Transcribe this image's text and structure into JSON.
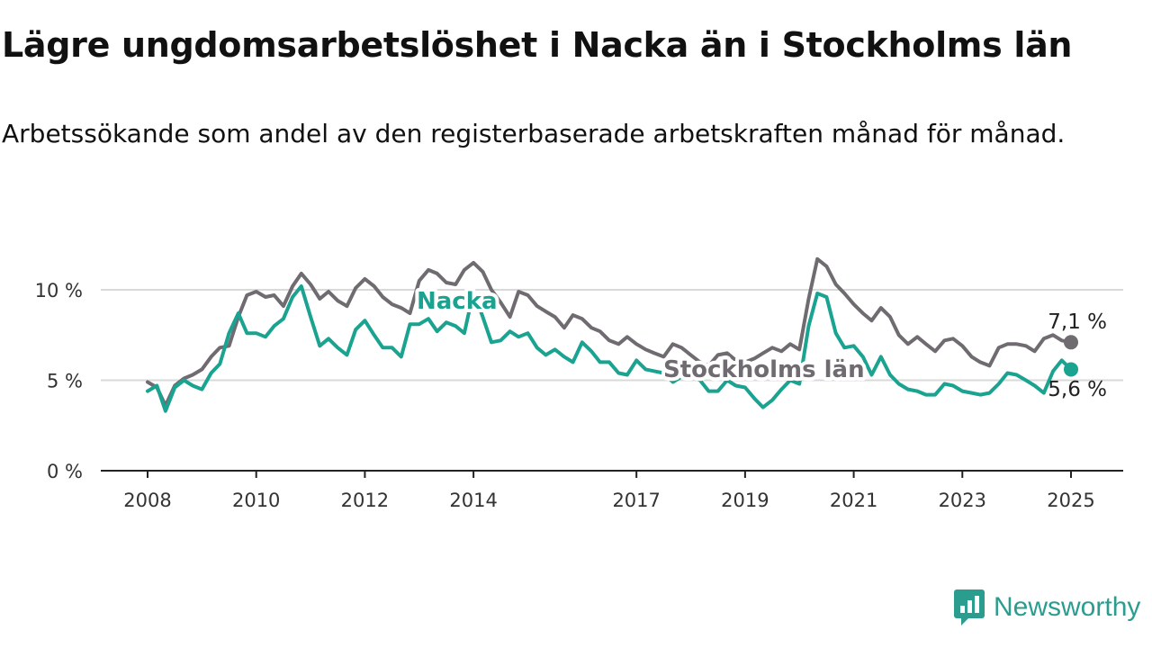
{
  "title": "Lägre ungdomsarbetslöshet i Nacka än i Stockholms län",
  "subtitle": "Arbetssökande som andel av den registerbaserade arbetskraften månad för månad.",
  "brand": {
    "name": "Newsworthy",
    "icon": "newsworthy-logo-icon",
    "color": "#2a9d8f"
  },
  "chart_data": {
    "type": "line",
    "title": "Lägre ungdomsarbetslöshet i Nacka än i Stockholms län",
    "subtitle": "Arbetssökande som andel av den registerbaserade arbetskraften månad för månad.",
    "xlabel": "",
    "ylabel": "",
    "x_range": [
      2008.0,
      2025.0
    ],
    "ylim": [
      0,
      12
    ],
    "x_ticks": [
      2008,
      2010,
      2012,
      2014,
      2017,
      2019,
      2021,
      2023,
      2025
    ],
    "x_tick_labels": [
      "2008",
      "2010",
      "2012",
      "2014",
      "2017",
      "2019",
      "2021",
      "2023",
      "2025"
    ],
    "y_ticks": [
      0,
      5,
      10
    ],
    "y_tick_labels": [
      "0 %",
      "5 %",
      "10 %"
    ],
    "grid": true,
    "legend": "inline labels",
    "series": [
      {
        "name": "Stockholms län",
        "color": "#6f6b70",
        "end_label": "7,1 %",
        "points": [
          [
            2008.0,
            4.9
          ],
          [
            2008.17,
            4.6
          ],
          [
            2008.33,
            3.6
          ],
          [
            2008.5,
            4.7
          ],
          [
            2008.67,
            5.1
          ],
          [
            2008.83,
            5.3
          ],
          [
            2009.0,
            5.6
          ],
          [
            2009.17,
            6.3
          ],
          [
            2009.33,
            6.8
          ],
          [
            2009.5,
            6.9
          ],
          [
            2009.67,
            8.5
          ],
          [
            2009.83,
            9.7
          ],
          [
            2010.0,
            9.9
          ],
          [
            2010.17,
            9.6
          ],
          [
            2010.33,
            9.7
          ],
          [
            2010.5,
            9.1
          ],
          [
            2010.67,
            10.2
          ],
          [
            2010.83,
            10.9
          ],
          [
            2011.0,
            10.3
          ],
          [
            2011.17,
            9.5
          ],
          [
            2011.33,
            9.9
          ],
          [
            2011.5,
            9.4
          ],
          [
            2011.67,
            9.1
          ],
          [
            2011.83,
            10.1
          ],
          [
            2012.0,
            10.6
          ],
          [
            2012.17,
            10.2
          ],
          [
            2012.33,
            9.6
          ],
          [
            2012.5,
            9.2
          ],
          [
            2012.67,
            9.0
          ],
          [
            2012.83,
            8.7
          ],
          [
            2013.0,
            10.5
          ],
          [
            2013.17,
            11.1
          ],
          [
            2013.33,
            10.9
          ],
          [
            2013.5,
            10.4
          ],
          [
            2013.67,
            10.3
          ],
          [
            2013.83,
            11.1
          ],
          [
            2014.0,
            11.5
          ],
          [
            2014.17,
            11.0
          ],
          [
            2014.33,
            10.0
          ],
          [
            2014.5,
            9.3
          ],
          [
            2014.67,
            8.5
          ],
          [
            2014.83,
            9.9
          ],
          [
            2015.0,
            9.7
          ],
          [
            2015.17,
            9.1
          ],
          [
            2015.33,
            8.8
          ],
          [
            2015.5,
            8.5
          ],
          [
            2015.67,
            7.9
          ],
          [
            2015.83,
            8.6
          ],
          [
            2016.0,
            8.4
          ],
          [
            2016.17,
            7.9
          ],
          [
            2016.33,
            7.7
          ],
          [
            2016.5,
            7.2
          ],
          [
            2016.67,
            7.0
          ],
          [
            2016.83,
            7.4
          ],
          [
            2017.0,
            7.0
          ],
          [
            2017.17,
            6.7
          ],
          [
            2017.33,
            6.5
          ],
          [
            2017.5,
            6.3
          ],
          [
            2017.67,
            7.0
          ],
          [
            2017.83,
            6.8
          ],
          [
            2018.0,
            6.4
          ],
          [
            2018.17,
            6.0
          ],
          [
            2018.33,
            5.8
          ],
          [
            2018.5,
            6.4
          ],
          [
            2018.67,
            6.5
          ],
          [
            2018.83,
            6.1
          ],
          [
            2019.0,
            6.0
          ],
          [
            2019.17,
            6.2
          ],
          [
            2019.33,
            6.5
          ],
          [
            2019.5,
            6.8
          ],
          [
            2019.67,
            6.6
          ],
          [
            2019.83,
            7.0
          ],
          [
            2020.0,
            6.7
          ],
          [
            2020.17,
            9.5
          ],
          [
            2020.33,
            11.7
          ],
          [
            2020.5,
            11.3
          ],
          [
            2020.67,
            10.3
          ],
          [
            2020.83,
            9.8
          ],
          [
            2021.0,
            9.2
          ],
          [
            2021.17,
            8.7
          ],
          [
            2021.33,
            8.3
          ],
          [
            2021.5,
            9.0
          ],
          [
            2021.67,
            8.5
          ],
          [
            2021.83,
            7.5
          ],
          [
            2022.0,
            7.0
          ],
          [
            2022.17,
            7.4
          ],
          [
            2022.33,
            7.0
          ],
          [
            2022.5,
            6.6
          ],
          [
            2022.67,
            7.2
          ],
          [
            2022.83,
            7.3
          ],
          [
            2023.0,
            6.9
          ],
          [
            2023.17,
            6.3
          ],
          [
            2023.33,
            6.0
          ],
          [
            2023.5,
            5.8
          ],
          [
            2023.67,
            6.8
          ],
          [
            2023.83,
            7.0
          ],
          [
            2024.0,
            7.0
          ],
          [
            2024.17,
            6.9
          ],
          [
            2024.33,
            6.6
          ],
          [
            2024.5,
            7.3
          ],
          [
            2024.67,
            7.5
          ],
          [
            2024.83,
            7.2
          ],
          [
            2025.0,
            7.1
          ]
        ]
      },
      {
        "name": "Nacka",
        "color": "#1aa391",
        "end_label": "5,6 %",
        "points": [
          [
            2008.0,
            4.4
          ],
          [
            2008.17,
            4.7
          ],
          [
            2008.33,
            3.3
          ],
          [
            2008.5,
            4.6
          ],
          [
            2008.67,
            5.0
          ],
          [
            2008.83,
            4.7
          ],
          [
            2009.0,
            4.5
          ],
          [
            2009.17,
            5.4
          ],
          [
            2009.33,
            5.9
          ],
          [
            2009.5,
            7.6
          ],
          [
            2009.67,
            8.7
          ],
          [
            2009.83,
            7.6
          ],
          [
            2010.0,
            7.6
          ],
          [
            2010.17,
            7.4
          ],
          [
            2010.33,
            8.0
          ],
          [
            2010.5,
            8.4
          ],
          [
            2010.67,
            9.6
          ],
          [
            2010.83,
            10.2
          ],
          [
            2011.0,
            8.5
          ],
          [
            2011.17,
            6.9
          ],
          [
            2011.33,
            7.3
          ],
          [
            2011.5,
            6.8
          ],
          [
            2011.67,
            6.4
          ],
          [
            2011.83,
            7.8
          ],
          [
            2012.0,
            8.3
          ],
          [
            2012.17,
            7.5
          ],
          [
            2012.33,
            6.8
          ],
          [
            2012.5,
            6.8
          ],
          [
            2012.67,
            6.3
          ],
          [
            2012.83,
            8.1
          ],
          [
            2013.0,
            8.1
          ],
          [
            2013.17,
            8.4
          ],
          [
            2013.33,
            7.7
          ],
          [
            2013.5,
            8.2
          ],
          [
            2013.67,
            8.0
          ],
          [
            2013.83,
            7.6
          ],
          [
            2014.0,
            9.9
          ],
          [
            2014.17,
            8.5
          ],
          [
            2014.33,
            7.1
          ],
          [
            2014.5,
            7.2
          ],
          [
            2014.67,
            7.7
          ],
          [
            2014.83,
            7.4
          ],
          [
            2015.0,
            7.6
          ],
          [
            2015.17,
            6.8
          ],
          [
            2015.33,
            6.4
          ],
          [
            2015.5,
            6.7
          ],
          [
            2015.67,
            6.3
          ],
          [
            2015.83,
            6.0
          ],
          [
            2016.0,
            7.1
          ],
          [
            2016.17,
            6.6
          ],
          [
            2016.33,
            6.0
          ],
          [
            2016.5,
            6.0
          ],
          [
            2016.67,
            5.4
          ],
          [
            2016.83,
            5.3
          ],
          [
            2017.0,
            6.1
          ],
          [
            2017.17,
            5.6
          ],
          [
            2017.33,
            5.5
          ],
          [
            2017.5,
            5.4
          ],
          [
            2017.67,
            4.9
          ],
          [
            2017.83,
            5.2
          ],
          [
            2018.0,
            5.3
          ],
          [
            2018.17,
            5.0
          ],
          [
            2018.33,
            4.4
          ],
          [
            2018.5,
            4.4
          ],
          [
            2018.67,
            5.0
          ],
          [
            2018.83,
            4.7
          ],
          [
            2019.0,
            4.6
          ],
          [
            2019.17,
            4.0
          ],
          [
            2019.33,
            3.5
          ],
          [
            2019.5,
            3.9
          ],
          [
            2019.67,
            4.5
          ],
          [
            2019.83,
            5.0
          ],
          [
            2020.0,
            4.8
          ],
          [
            2020.17,
            8.0
          ],
          [
            2020.33,
            9.8
          ],
          [
            2020.5,
            9.6
          ],
          [
            2020.67,
            7.6
          ],
          [
            2020.83,
            6.8
          ],
          [
            2021.0,
            6.9
          ],
          [
            2021.17,
            6.3
          ],
          [
            2021.33,
            5.3
          ],
          [
            2021.5,
            6.3
          ],
          [
            2021.67,
            5.3
          ],
          [
            2021.83,
            4.8
          ],
          [
            2022.0,
            4.5
          ],
          [
            2022.17,
            4.4
          ],
          [
            2022.33,
            4.2
          ],
          [
            2022.5,
            4.2
          ],
          [
            2022.67,
            4.8
          ],
          [
            2022.83,
            4.7
          ],
          [
            2023.0,
            4.4
          ],
          [
            2023.17,
            4.3
          ],
          [
            2023.33,
            4.2
          ],
          [
            2023.5,
            4.3
          ],
          [
            2023.67,
            4.8
          ],
          [
            2023.83,
            5.4
          ],
          [
            2024.0,
            5.3
          ],
          [
            2024.17,
            5.0
          ],
          [
            2024.33,
            4.7
          ],
          [
            2024.5,
            4.3
          ],
          [
            2024.67,
            5.5
          ],
          [
            2024.83,
            6.1
          ],
          [
            2025.0,
            5.6
          ]
        ]
      }
    ]
  }
}
